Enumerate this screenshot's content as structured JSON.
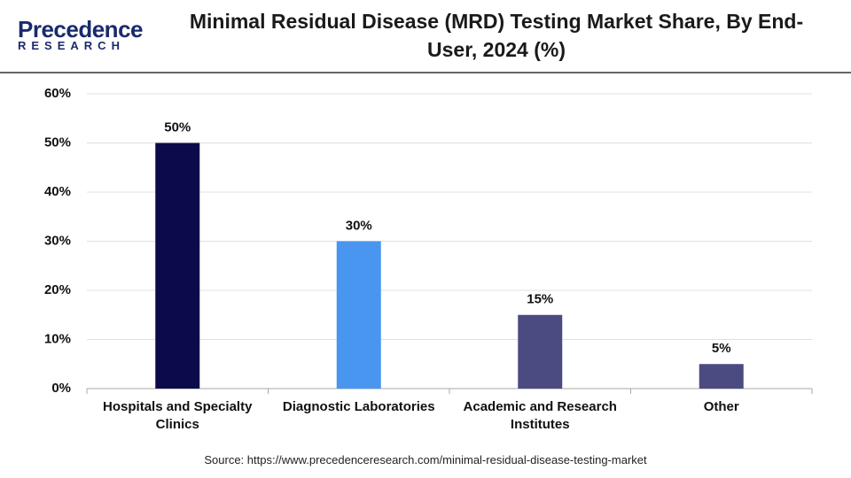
{
  "logo": {
    "name": "Precedence",
    "tagline": "RESEARCH"
  },
  "chart_data": {
    "type": "bar",
    "title": "Minimal Residual Disease (MRD) Testing Market Share, By End-User, 2024 (%)",
    "categories": [
      "Hospitals and Specialty Clinics",
      "Diagnostic Laboratories",
      "Academic and Research Institutes",
      "Other"
    ],
    "values": [
      50,
      30,
      15,
      5
    ],
    "value_labels": [
      "50%",
      "30%",
      "15%",
      "5%"
    ],
    "colors": [
      "#0b0b4b",
      "#4896f0",
      "#4b4b82",
      "#4b4b82"
    ],
    "ylim": [
      0,
      60
    ],
    "yticks": [
      {
        "value": 0,
        "label": "0%"
      },
      {
        "value": 10,
        "label": "10%"
      },
      {
        "value": 20,
        "label": "20%"
      },
      {
        "value": 30,
        "label": "30%"
      },
      {
        "value": 40,
        "label": "40%"
      },
      {
        "value": 50,
        "label": "50%"
      },
      {
        "value": 60,
        "label": "60%"
      }
    ],
    "grid": true,
    "source": "Source: https://www.precedenceresearch.com/minimal-residual-disease-testing-market"
  }
}
